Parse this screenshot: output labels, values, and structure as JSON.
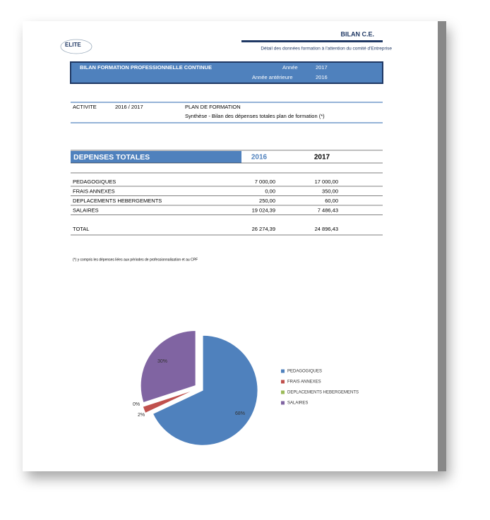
{
  "header": {
    "logo": "ELITE",
    "title": "BILAN C.E.",
    "subtitle": "Détail des données formation à l'attention du comité d'Entreprise"
  },
  "banner": {
    "title": "BILAN FORMATION PROFESSIONNELLE CONTINUE",
    "rows": [
      [
        "Année",
        "2017"
      ],
      [
        "Année antérieure",
        "2016"
      ]
    ]
  },
  "activity": {
    "label": "ACTIVITE",
    "period": "2016 /  2017",
    "plan": "PLAN DE FORMATION",
    "description": "Synthèse - Bilan des dépenses totales plan de formation (*)"
  },
  "table": {
    "header": [
      "DEPENSES TOTALES",
      "2016",
      "2017"
    ],
    "rows": [
      [
        "PEDAGOGIQUES",
        "7 000,00",
        "17 000,00"
      ],
      [
        "FRAIS  ANNEXES",
        "0,00",
        "350,00"
      ],
      [
        "DEPLACEMENTS HEBERGEMENTS",
        "250,00",
        "60,00"
      ],
      [
        "SALAIRES",
        "19 024,39",
        "7 486,43"
      ]
    ],
    "total": [
      "TOTAL",
      "26 274,39",
      "24 896,43"
    ]
  },
  "footnote": "(*) y compris les dépenses liées aux périodes de professionnalisation et au CPF",
  "chart_data": {
    "type": "pie",
    "categories": [
      "PEDAGOGIQUES",
      "FRAIS  ANNEXES",
      "DEPLACEMENTS HEBERGEMENTS",
      "SALAIRES"
    ],
    "values": [
      68,
      2,
      0,
      30
    ],
    "value_labels": [
      "68%",
      "2%",
      "0%",
      "30%"
    ],
    "colors": [
      "#4f81bd",
      "#c0504d",
      "#9bbb59",
      "#8064a2"
    ]
  }
}
